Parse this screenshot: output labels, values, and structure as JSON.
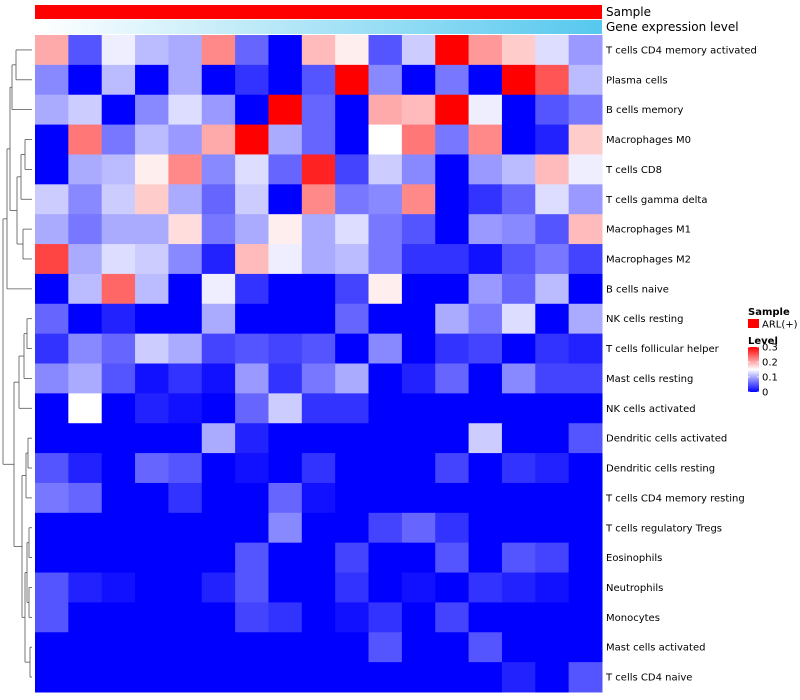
{
  "chart_data": {
    "type": "heatmap",
    "annotation_tracks": [
      {
        "label": "Sample",
        "color": "#ff0000"
      },
      {
        "label": "Gene expression level",
        "gradient_from": "#ffffff",
        "gradient_to": "#56c8ee"
      }
    ],
    "rows": [
      "T cells CD4 memory activated",
      "Plasma cells",
      "B cells memory",
      "Macrophages M0",
      "T cells CD8",
      "T cells gamma delta",
      "Macrophages M1",
      "Macrophages M2",
      "B cells naive",
      "NK cells resting",
      "T cells follicular helper",
      "Mast cells resting",
      "NK cells activated",
      "Dendritic cells activated",
      "Dendritic cells resting",
      "T cells CD4 memory resting",
      "T cells regulatory  Tregs",
      "Eosinophils",
      "Neutrophils",
      "Monocytes",
      "Mast cells activated",
      "T cells CD4 naive"
    ],
    "n_columns": 17,
    "values": [
      [
        0.2,
        0.05,
        0.14,
        0.11,
        0.1,
        0.22,
        0.06,
        0.0,
        0.19,
        0.16,
        0.05,
        0.12,
        0.3,
        0.21,
        0.18,
        0.13,
        0.09
      ],
      [
        0.08,
        0.0,
        0.11,
        0.0,
        0.1,
        0.0,
        0.03,
        0.0,
        0.05,
        0.3,
        0.08,
        0.0,
        0.07,
        0.0,
        0.3,
        0.25,
        0.11
      ],
      [
        0.1,
        0.12,
        0.0,
        0.08,
        0.13,
        0.09,
        0.0,
        0.3,
        0.06,
        0.0,
        0.2,
        0.19,
        0.3,
        0.14,
        0.0,
        0.05,
        0.07
      ],
      [
        0.0,
        0.23,
        0.07,
        0.11,
        0.09,
        0.2,
        0.3,
        0.1,
        0.06,
        0.0,
        0.15,
        0.23,
        0.07,
        0.22,
        0.0,
        0.02,
        0.18
      ],
      [
        0.0,
        0.1,
        0.11,
        0.16,
        0.22,
        0.08,
        0.13,
        0.06,
        0.28,
        0.04,
        0.12,
        0.08,
        0.0,
        0.09,
        0.11,
        0.19,
        0.14
      ],
      [
        0.12,
        0.08,
        0.12,
        0.18,
        0.1,
        0.06,
        0.12,
        0.0,
        0.22,
        0.07,
        0.08,
        0.22,
        0.0,
        0.03,
        0.06,
        0.13,
        0.09
      ],
      [
        0.1,
        0.07,
        0.1,
        0.1,
        0.17,
        0.07,
        0.1,
        0.16,
        0.1,
        0.13,
        0.07,
        0.05,
        0.0,
        0.09,
        0.08,
        0.05,
        0.19
      ],
      [
        0.26,
        0.1,
        0.13,
        0.12,
        0.08,
        0.02,
        0.19,
        0.14,
        0.1,
        0.11,
        0.07,
        0.03,
        0.03,
        0.01,
        0.05,
        0.07,
        0.04
      ],
      [
        0.0,
        0.11,
        0.24,
        0.11,
        0.0,
        0.14,
        0.03,
        0.0,
        0.0,
        0.04,
        0.16,
        0.0,
        0.0,
        0.09,
        0.06,
        0.11,
        0.0
      ],
      [
        0.06,
        0.0,
        0.02,
        0.0,
        0.0,
        0.1,
        0.0,
        0.0,
        0.0,
        0.06,
        0.0,
        0.0,
        0.1,
        0.07,
        0.13,
        0.0,
        0.1
      ],
      [
        0.03,
        0.08,
        0.06,
        0.12,
        0.1,
        0.04,
        0.05,
        0.04,
        0.05,
        0.0,
        0.08,
        0.0,
        0.03,
        0.04,
        0.0,
        0.03,
        0.02
      ],
      [
        0.08,
        0.1,
        0.05,
        0.01,
        0.03,
        0.01,
        0.09,
        0.03,
        0.07,
        0.1,
        0.0,
        0.02,
        0.06,
        0.0,
        0.08,
        0.04,
        0.04
      ],
      [
        0.0,
        0.15,
        0.0,
        0.02,
        0.01,
        0.0,
        0.06,
        0.12,
        0.03,
        0.03,
        0.0,
        0.0,
        0.0,
        0.0,
        0.0,
        0.0,
        0.0
      ],
      [
        0.0,
        0.0,
        0.0,
        0.0,
        0.0,
        0.1,
        0.02,
        0.0,
        0.0,
        0.0,
        0.0,
        0.0,
        0.0,
        0.12,
        0.0,
        0.0,
        0.05
      ],
      [
        0.05,
        0.02,
        0.0,
        0.06,
        0.05,
        0.0,
        0.01,
        0.0,
        0.03,
        0.0,
        0.0,
        0.0,
        0.04,
        0.0,
        0.03,
        0.02,
        0.0
      ],
      [
        0.07,
        0.06,
        0.0,
        0.0,
        0.03,
        0.0,
        0.0,
        0.06,
        0.01,
        0.0,
        0.0,
        0.0,
        0.0,
        0.0,
        0.0,
        0.0,
        0.0
      ],
      [
        0.0,
        0.0,
        0.0,
        0.0,
        0.0,
        0.0,
        0.0,
        0.08,
        0.0,
        0.0,
        0.04,
        0.06,
        0.03,
        0.0,
        0.0,
        0.0,
        0.0
      ],
      [
        0.0,
        0.0,
        0.0,
        0.0,
        0.0,
        0.0,
        0.05,
        0.0,
        0.0,
        0.04,
        0.0,
        0.0,
        0.05,
        0.0,
        0.05,
        0.04,
        0.0
      ],
      [
        0.05,
        0.02,
        0.01,
        0.0,
        0.0,
        0.02,
        0.05,
        0.0,
        0.0,
        0.03,
        0.0,
        0.01,
        0.0,
        0.03,
        0.02,
        0.01,
        0.0
      ],
      [
        0.05,
        0.0,
        0.0,
        0.0,
        0.0,
        0.0,
        0.04,
        0.03,
        0.0,
        0.01,
        0.03,
        0.0,
        0.04,
        0.0,
        0.0,
        0.0,
        0.0
      ],
      [
        0.0,
        0.0,
        0.0,
        0.0,
        0.0,
        0.0,
        0.0,
        0.0,
        0.0,
        0.0,
        0.05,
        0.0,
        0.0,
        0.05,
        0.0,
        0.0,
        0.0
      ],
      [
        0.0,
        0.0,
        0.0,
        0.0,
        0.0,
        0.0,
        0.0,
        0.0,
        0.0,
        0.0,
        0.0,
        0.0,
        0.0,
        0.0,
        0.02,
        0.0,
        0.05
      ]
    ],
    "color_scale": {
      "min": 0,
      "max": 0.3,
      "low": "#0000ff",
      "mid": "#ffffff",
      "high": "#ff0000"
    },
    "legend": {
      "sample_title": "Sample",
      "sample_entry": "ARL(+)",
      "sample_color": "#ff0000",
      "level_title": "Level",
      "ticks": [
        0.3,
        0.2,
        0.1,
        0
      ],
      "tick_labels": [
        "0.3",
        "0.2",
        "0.1",
        "0"
      ]
    },
    "row_dendrogram": "left",
    "legend_placement": "right"
  }
}
